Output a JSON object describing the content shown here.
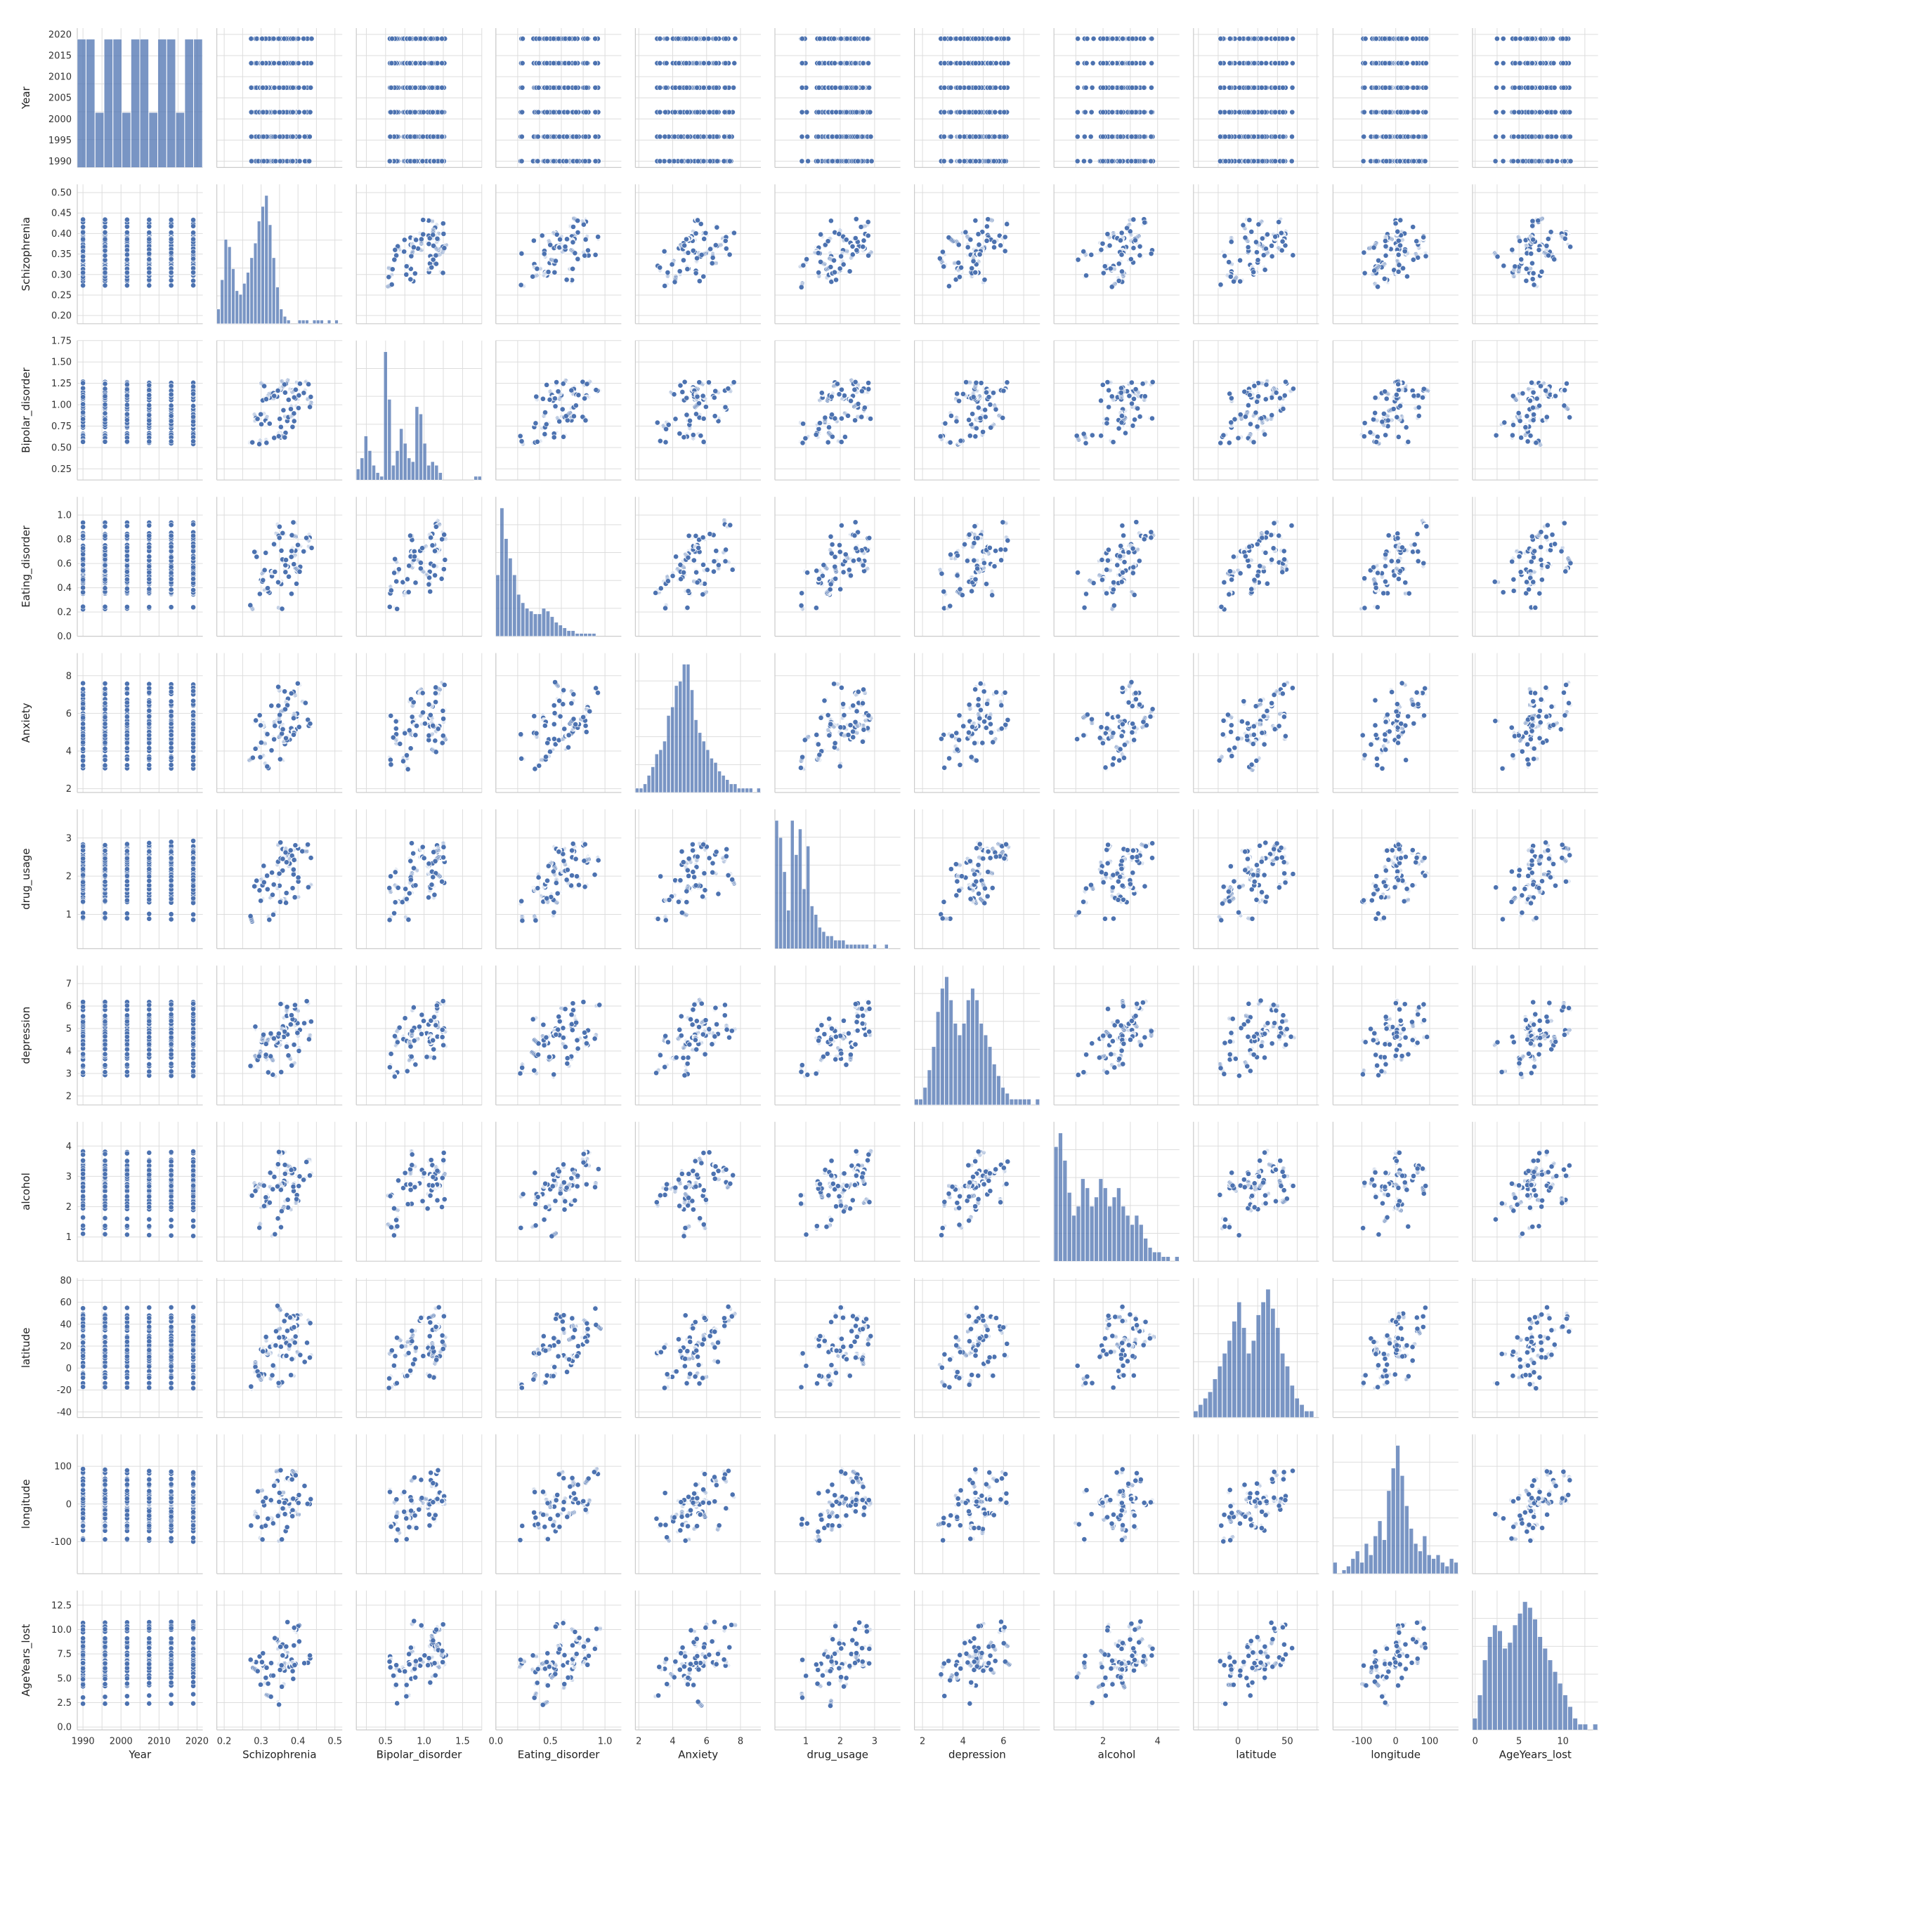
{
  "figure": {
    "title": "",
    "accent": "#4c72b0",
    "grid": true
  },
  "variables": [
    "Year",
    "Schizophrenia",
    "Bipolar_disorder",
    "Eating_disorder",
    "Anxiety",
    "drug_usage",
    "depression",
    "alcohol",
    "latitude",
    "longitude",
    "AgeYears_lost"
  ],
  "chart_data": {
    "type": "scatter",
    "subtype": "pairplot",
    "title": "",
    "grid": true,
    "diagonal": "histogram",
    "variables": [
      {
        "name": "Year",
        "range": [
          1988.5,
          2021.5
        ],
        "ticks": [
          1990,
          1995,
          2000,
          2005,
          2010,
          2015,
          2020
        ],
        "xticks": [
          1990,
          2000,
          2010,
          2020
        ],
        "hist": [
          7,
          7,
          3,
          7,
          7,
          3,
          7,
          7,
          3,
          7,
          7,
          3,
          7,
          7
        ]
      },
      {
        "name": "Schizophrenia",
        "range": [
          0.18,
          0.52
        ],
        "ticks": [
          0.2,
          0.25,
          0.3,
          0.35,
          0.4,
          0.45,
          0.5
        ],
        "xticks": [
          0.2,
          0.3,
          0.4,
          0.5
        ],
        "hist": [
          4,
          12,
          23,
          21,
          15,
          9,
          8,
          11,
          14,
          18,
          22,
          28,
          32,
          35,
          27,
          18,
          10,
          4,
          2,
          1,
          0,
          0,
          1,
          1,
          1,
          0,
          1,
          1,
          1,
          0,
          1,
          0,
          1,
          0
        ]
      },
      {
        "name": "Bipolar_disorder",
        "range": [
          0.12,
          1.75
        ],
        "ticks": [
          0.25,
          0.5,
          0.75,
          1.0,
          1.25,
          1.5,
          1.75
        ],
        "xticks": [
          0.5,
          1.0,
          1.5
        ],
        "hist": [
          3,
          6,
          12,
          8,
          4,
          2,
          1,
          35,
          22,
          4,
          8,
          14,
          10,
          6,
          5,
          20,
          18,
          10,
          4,
          5,
          4,
          2,
          0,
          0,
          0,
          0,
          0,
          0,
          0,
          0,
          1,
          1
        ]
      },
      {
        "name": "Eating_disorder",
        "range": [
          0.0,
          1.15
        ],
        "ticks": [
          0.0,
          0.2,
          0.4,
          0.6,
          0.8,
          1.0
        ],
        "xticks": [
          0.0,
          0.5,
          1.0
        ],
        "hist": [
          22,
          46,
          35,
          28,
          22,
          15,
          12,
          10,
          9,
          8,
          8,
          10,
          9,
          7,
          5,
          4,
          3,
          2,
          2,
          1,
          1,
          1,
          1,
          1,
          0,
          0,
          0,
          0,
          0,
          0
        ]
      },
      {
        "name": "Anxiety",
        "range": [
          1.8,
          9.2
        ],
        "ticks": [
          2,
          4,
          6,
          8
        ],
        "xticks": [
          2,
          4,
          6,
          8
        ],
        "hist": [
          1,
          1,
          2,
          4,
          6,
          9,
          10,
          12,
          18,
          20,
          25,
          26,
          30,
          30,
          24,
          17,
          14,
          12,
          10,
          8,
          7,
          5,
          4,
          3,
          2,
          2,
          1,
          1,
          1,
          1,
          0,
          1
        ]
      },
      {
        "name": "drug_usage",
        "range": [
          0.1,
          3.75
        ],
        "ticks": [
          1,
          2,
          3
        ],
        "xticks": [
          1,
          2,
          3
        ],
        "hist": [
          30,
          26,
          18,
          9,
          30,
          22,
          28,
          14,
          24,
          10,
          8,
          5,
          4,
          3,
          3,
          2,
          2,
          2,
          1,
          1,
          1,
          1,
          1,
          1,
          0,
          1,
          0,
          0,
          1,
          0,
          0,
          0
        ]
      },
      {
        "name": "depression",
        "range": [
          1.6,
          7.8
        ],
        "ticks": [
          2,
          3,
          4,
          5,
          6,
          7
        ],
        "xticks": [
          2,
          4,
          6
        ],
        "hist": [
          1,
          1,
          3,
          6,
          10,
          16,
          20,
          22,
          18,
          14,
          12,
          14,
          18,
          20,
          18,
          14,
          12,
          10,
          7,
          5,
          3,
          2,
          1,
          1,
          1,
          1,
          1,
          0,
          1
        ]
      },
      {
        "name": "alcohol",
        "range": [
          0.2,
          4.8
        ],
        "ticks": [
          1,
          2,
          3,
          4
        ],
        "xticks": [
          2,
          4
        ],
        "hist": [
          25,
          28,
          22,
          15,
          10,
          12,
          18,
          16,
          12,
          14,
          18,
          16,
          12,
          14,
          16,
          12,
          10,
          8,
          10,
          8,
          5,
          3,
          2,
          2,
          1,
          1,
          0,
          1
        ]
      },
      {
        "name": "latitude",
        "range": [
          -45,
          82
        ],
        "ticks": [
          -40,
          -20,
          0,
          20,
          40,
          60,
          80
        ],
        "xticks": [
          0,
          50
        ],
        "hist": [
          1,
          2,
          3,
          4,
          6,
          8,
          10,
          12,
          15,
          18,
          14,
          10,
          12,
          16,
          18,
          20,
          17,
          14,
          10,
          8,
          5,
          3,
          2,
          1,
          1,
          0
        ]
      },
      {
        "name": "longitude",
        "range": [
          -185,
          185
        ],
        "ticks": [
          -100,
          0,
          100
        ],
        "xticks": [
          -100,
          0,
          100
        ],
        "hist": [
          3,
          0,
          1,
          2,
          4,
          6,
          3,
          8,
          5,
          10,
          14,
          9,
          22,
          28,
          34,
          26,
          18,
          12,
          8,
          6,
          10,
          5,
          4,
          5,
          3,
          2,
          4,
          3
        ]
      },
      {
        "name": "AgeYears_lost",
        "range": [
          -0.3,
          14.0
        ],
        "ticks": [
          0.0,
          2.5,
          5.0,
          7.5,
          10.0,
          12.5
        ],
        "xticks": [
          0,
          5,
          10
        ],
        "hist": [
          2,
          6,
          12,
          16,
          18,
          17,
          14,
          15,
          18,
          20,
          22,
          21,
          19,
          16,
          14,
          12,
          10,
          8,
          6,
          4,
          2,
          1,
          1,
          0,
          1
        ]
      }
    ],
    "n_countries": 48,
    "years": [
      1990,
      2019
    ]
  }
}
